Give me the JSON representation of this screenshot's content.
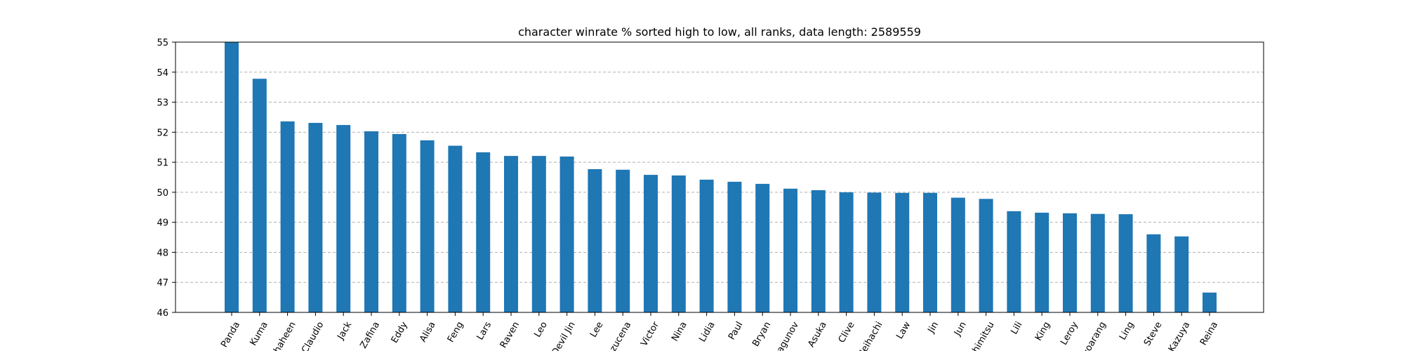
{
  "chart_data": {
    "type": "bar",
    "title": "character winrate % sorted high to low, all ranks, data length: 2589559",
    "xlabel": "",
    "ylabel": "",
    "ylim": [
      46,
      55
    ],
    "yticks": [
      46,
      47,
      48,
      49,
      50,
      51,
      52,
      53,
      54,
      55
    ],
    "grid": true,
    "bar_color": "#1f77b4",
    "categories": [
      "Panda",
      "Kuma",
      "Shaheen",
      "Claudio",
      "Jack",
      "Zafina",
      "Eddy",
      "Alisa",
      "Feng",
      "Lars",
      "Raven",
      "Leo",
      "Devil Jin",
      "Lee",
      "Azucena",
      "Victor",
      "Nina",
      "Lidia",
      "Paul",
      "Bryan",
      "Dragunov",
      "Asuka",
      "Clive",
      "Heihachi",
      "Law",
      "Jin",
      "Jun",
      "Yoshimitsu",
      "Lili",
      "King",
      "Leroy",
      "Hwoarang",
      "Ling",
      "Steve",
      "Kazuya",
      "Reina"
    ],
    "values": [
      55.0,
      53.78,
      52.36,
      52.31,
      52.24,
      52.03,
      51.94,
      51.73,
      51.55,
      51.33,
      51.21,
      51.21,
      51.19,
      50.77,
      50.75,
      50.58,
      50.56,
      50.42,
      50.35,
      50.28,
      50.12,
      50.07,
      50.0,
      49.99,
      49.98,
      49.98,
      49.82,
      49.78,
      49.37,
      49.32,
      49.3,
      49.28,
      49.27,
      48.6,
      48.53,
      46.66
    ]
  }
}
